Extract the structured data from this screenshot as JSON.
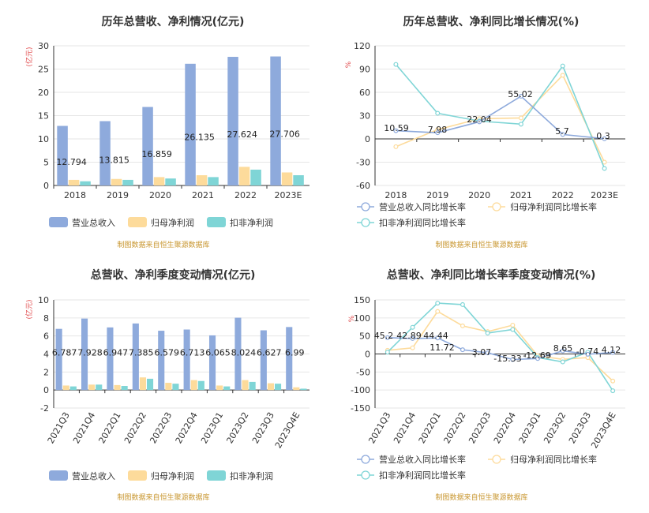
{
  "chart_data": [
    {
      "type": "bar",
      "title": "历年总营收、净利情况(亿元)",
      "unit": "(亿元)",
      "categories": [
        "2018",
        "2019",
        "2020",
        "2021",
        "2022",
        "2023E"
      ],
      "ylim": [
        0,
        30
      ],
      "yticks": [
        0,
        5,
        10,
        15,
        20,
        25,
        30
      ],
      "series": [
        {
          "name": "营业总收入",
          "color": "#8eaadc",
          "values": [
            12.794,
            13.815,
            16.859,
            26.135,
            27.624,
            27.706
          ],
          "labels": [
            "12.794",
            "13.815",
            "16.859",
            "26.135",
            "27.624",
            "27.706"
          ]
        },
        {
          "name": "归母净利润",
          "color": "#fddb9b",
          "values": [
            1.2,
            1.4,
            1.8,
            2.2,
            4.0,
            2.8
          ]
        },
        {
          "name": "扣非净利润",
          "color": "#7fd5d6",
          "values": [
            0.9,
            1.2,
            1.5,
            1.8,
            3.4,
            2.2
          ]
        }
      ],
      "source": "制图数据来自恒生聚源数据库"
    },
    {
      "type": "line",
      "title": "历年总营收、净利同比增长情况(%)",
      "unit": "%",
      "categories": [
        "2018",
        "2019",
        "2020",
        "2021",
        "2022",
        "2023E"
      ],
      "ylim": [
        -60,
        120
      ],
      "yticks": [
        -60,
        -30,
        0,
        30,
        60,
        90,
        120
      ],
      "series": [
        {
          "name": "营业总收入同比增长率",
          "color": "#8eaadc",
          "values": [
            10.59,
            7.98,
            22.04,
            55.02,
            5.7,
            0.3
          ],
          "labels": [
            "10.59",
            "7.98",
            "22.04",
            "55.02",
            "5.7",
            "0.3"
          ]
        },
        {
          "name": "归母净利润同比增长率",
          "color": "#fddb9b",
          "values": [
            -10,
            12,
            26,
            27,
            82,
            -30
          ]
        },
        {
          "name": "扣非净利润同比增长率",
          "color": "#7fd5d6",
          "values": [
            96,
            33,
            23,
            19,
            94,
            -38
          ]
        }
      ],
      "source": "制图数据来自恒生聚源数据库"
    },
    {
      "type": "bar",
      "title": "总营收、净利季度变动情况(亿元)",
      "unit": "(亿元)",
      "categories": [
        "2021Q3",
        "2021Q4",
        "2022Q1",
        "2022Q2",
        "2022Q3",
        "2022Q4",
        "2023Q1",
        "2023Q2",
        "2023Q3",
        "2023Q4E"
      ],
      "ylim": [
        -2,
        10
      ],
      "yticks": [
        -2,
        0,
        2,
        4,
        6,
        8,
        10
      ],
      "series": [
        {
          "name": "营业总收入",
          "color": "#8eaadc",
          "values": [
            6.787,
            7.928,
            6.947,
            7.385,
            6.579,
            6.713,
            6.065,
            8.024,
            6.627,
            6.99
          ],
          "labels": [
            "6.787",
            "7.928",
            "6.947",
            "7.385",
            "6.579",
            "6.713",
            "6.065",
            "8.024",
            "6.627",
            "6.99"
          ]
        },
        {
          "name": "归母净利润",
          "color": "#fddb9b",
          "values": [
            0.5,
            0.6,
            0.55,
            1.4,
            0.8,
            1.1,
            0.5,
            1.1,
            0.75,
            0.3
          ]
        },
        {
          "name": "扣非净利润",
          "color": "#7fd5d6",
          "values": [
            0.4,
            0.6,
            0.45,
            1.25,
            0.7,
            1.0,
            0.4,
            0.9,
            0.7,
            0.15
          ]
        }
      ],
      "source": "制图数据来自恒生聚源数据库"
    },
    {
      "type": "line",
      "title": "总营收、净利同比增长率季度变动情况(%)",
      "unit": "%",
      "categories": [
        "2021Q3",
        "2021Q4",
        "2022Q1",
        "2022Q2",
        "2022Q3",
        "2022Q4",
        "2023Q1",
        "2023Q2",
        "2023Q3",
        "2023Q4E"
      ],
      "ylim": [
        -150,
        150
      ],
      "yticks": [
        -150,
        -100,
        -50,
        0,
        50,
        100,
        150
      ],
      "series": [
        {
          "name": "营业总收入同比增长率",
          "color": "#8eaadc",
          "values": [
            45.2,
            42.89,
            44.44,
            11.72,
            3.07,
            -15.33,
            -12.69,
            8.65,
            -0.74,
            4.12
          ],
          "labels": [
            "45.2",
            "42.89",
            "44.44",
            "11.72",
            "3.07",
            "-15.33",
            "-12.69",
            "8.65",
            "-0.74",
            "4.12"
          ]
        },
        {
          "name": "归母净利润同比增长率",
          "color": "#fddb9b",
          "values": [
            10,
            17,
            118,
            78,
            62,
            80,
            -5,
            -15,
            -10,
            -75
          ]
        },
        {
          "name": "扣非净利润同比增长率",
          "color": "#7fd5d6",
          "values": [
            5,
            74,
            141,
            137,
            58,
            68,
            -10,
            -22,
            5,
            -102
          ]
        }
      ],
      "source": "制图数据来自恒生聚源数据库"
    }
  ]
}
